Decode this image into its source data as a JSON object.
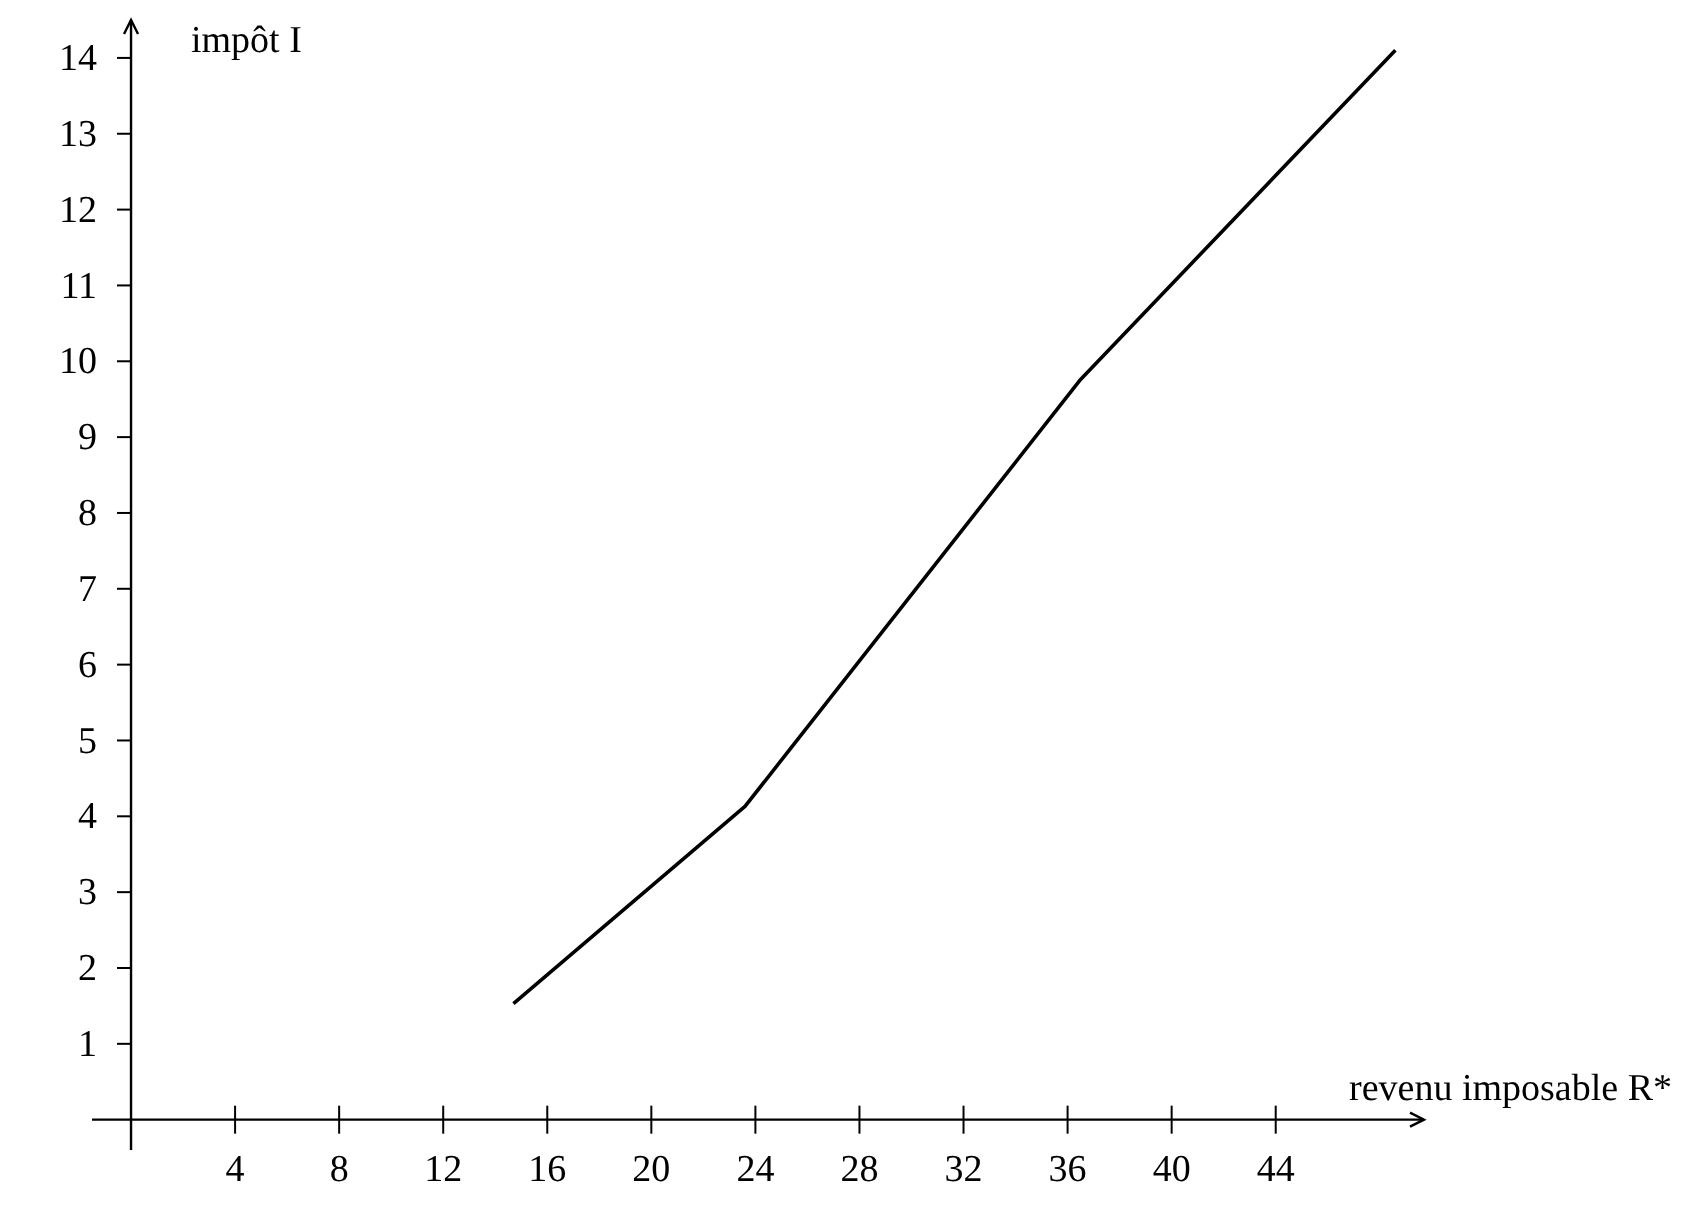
{
  "chart_data": {
    "type": "line",
    "xlabel": "revenu imposable R*",
    "ylabel": "impôt I",
    "x": [
      14.7,
      23.6,
      36.5,
      48.6
    ],
    "values": [
      1.53,
      4.13,
      9.76,
      14.1
    ],
    "color": "#000000",
    "xlim": [
      -1.5,
      49.7
    ],
    "ylim": [
      -0.4,
      14.5
    ],
    "xticks": [
      4,
      8,
      12,
      16,
      20,
      24,
      28,
      32,
      36,
      40,
      44
    ],
    "yticks": [
      1,
      2,
      3,
      4,
      5,
      6,
      7,
      8,
      9,
      10,
      11,
      12,
      13,
      14
    ],
    "grid": false,
    "marker": "none",
    "line_style": "solid"
  }
}
